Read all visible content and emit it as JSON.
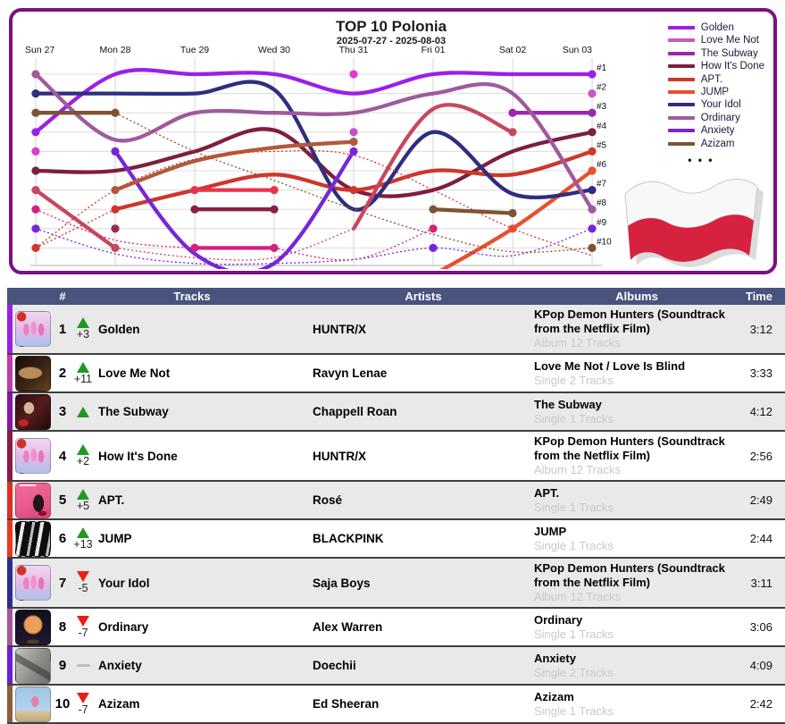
{
  "chart": {
    "title": "TOP 10 Polonia",
    "subtitle": "2025-07-27 - 2025-08-03",
    "border_color": "#7A1083",
    "rank_labels": [
      "#1",
      "#2",
      "#3",
      "#4",
      "#5",
      "#6",
      "#7",
      "#8",
      "#9",
      "#10"
    ],
    "legend_more": "•  •  •"
  },
  "chart_data": {
    "type": "line",
    "subtype": "bump-ranking",
    "title": "TOP 10 Polonia",
    "subtitle": "2025-07-27 - 2025-08-03",
    "x_categories": [
      "Sun 27",
      "Mon 28",
      "Tue 29",
      "Wed 30",
      "Thu 31",
      "Fri 01",
      "Sat 02",
      "Sun 03"
    ],
    "y_axis": {
      "label": "rank",
      "ticks": [
        1,
        2,
        3,
        4,
        5,
        6,
        7,
        8,
        9,
        10
      ],
      "inverted": true
    },
    "grid": true,
    "legend_position": "right",
    "series": [
      {
        "name": "Golden",
        "color": "#9B1FE8",
        "legend": true,
        "segments": [
          {
            "style": "solid",
            "pts": [
              [
                0,
                4
              ],
              [
                1,
                1
              ],
              [
                2,
                1
              ],
              [
                3,
                1
              ],
              [
                4,
                2
              ],
              [
                5,
                1
              ],
              [
                6,
                1
              ],
              [
                7,
                1
              ]
            ]
          }
        ],
        "dots": [
          [
            0,
            4
          ],
          [
            7,
            1
          ]
        ]
      },
      {
        "name": "Love Me Not",
        "color": "#C65BC1",
        "legend": true,
        "segments": [],
        "dots": [
          [
            7,
            2
          ]
        ]
      },
      {
        "name": "The Subway",
        "color": "#9B27AE",
        "legend": true,
        "segments": [
          {
            "style": "solid",
            "pts": [
              [
                6,
                3
              ],
              [
                7,
                3
              ]
            ]
          }
        ],
        "dots": [
          [
            6,
            3
          ],
          [
            7,
            3
          ]
        ]
      },
      {
        "name": "How It's Done",
        "color": "#7E1E3F",
        "legend": true,
        "segments": [
          {
            "style": "solid",
            "pts": [
              [
                0,
                6
              ],
              [
                1,
                6
              ],
              [
                2,
                5
              ],
              [
                3,
                3.9
              ],
              [
                4,
                7
              ],
              [
                5,
                7
              ],
              [
                6,
                5
              ],
              [
                7,
                4
              ]
            ]
          }
        ],
        "dots": [
          [
            0,
            6
          ],
          [
            7,
            4
          ]
        ]
      },
      {
        "name": "APT.",
        "color": "#CE372C",
        "legend": true,
        "segments": [
          {
            "style": "dotted",
            "pts": [
              [
                0,
                10
              ],
              [
                1,
                8
              ]
            ]
          },
          {
            "style": "solid",
            "pts": [
              [
                1,
                8
              ],
              [
                2,
                7
              ],
              [
                3,
                6.2
              ],
              [
                4,
                7
              ],
              [
                5,
                6
              ],
              [
                6,
                6.2
              ],
              [
                7,
                5
              ]
            ]
          }
        ],
        "dots": [
          [
            0,
            10
          ],
          [
            1,
            8
          ],
          [
            4,
            7
          ],
          [
            7,
            5
          ]
        ]
      },
      {
        "name": "JUMP",
        "color": "#E8502E",
        "legend": true,
        "segments": [
          {
            "style": "solid",
            "pts": [
              [
                5,
                11.4
              ],
              [
                6,
                9
              ],
              [
                7,
                6
              ]
            ]
          }
        ],
        "dots": [
          [
            6,
            9
          ],
          [
            7,
            6
          ]
        ]
      },
      {
        "name": "Your Idol",
        "color": "#2E2E7E",
        "legend": true,
        "segments": [
          {
            "style": "solid",
            "pts": [
              [
                0,
                2
              ],
              [
                1,
                2
              ],
              [
                2,
                2
              ],
              [
                3,
                1.8
              ],
              [
                4,
                8
              ],
              [
                5,
                4
              ],
              [
                6,
                7.2
              ],
              [
                7,
                7
              ]
            ]
          }
        ],
        "dots": [
          [
            0,
            2
          ],
          [
            7,
            7
          ]
        ]
      },
      {
        "name": "Ordinary",
        "color": "#A05A9C",
        "legend": true,
        "segments": [
          {
            "style": "solid",
            "pts": [
              [
                0,
                1
              ],
              [
                1,
                4.4
              ],
              [
                2,
                3
              ],
              [
                3,
                3
              ],
              [
                4,
                3
              ],
              [
                5,
                2
              ],
              [
                6,
                2
              ],
              [
                7,
                8
              ]
            ]
          }
        ],
        "dots": [
          [
            0,
            1
          ],
          [
            7,
            8
          ]
        ]
      },
      {
        "name": "Anxiety",
        "color": "#7626D8",
        "legend": true,
        "segments": [
          {
            "style": "dotted",
            "pts": [
              [
                0,
                9
              ],
              [
                1,
                10.3
              ],
              [
                2,
                10.8
              ],
              [
                3,
                10.8
              ],
              [
                4,
                10.6
              ],
              [
                5,
                10
              ],
              [
                6,
                10.4
              ],
              [
                7,
                9
              ]
            ]
          }
        ],
        "dots": [
          [
            0,
            9
          ],
          [
            5,
            10
          ],
          [
            7,
            9
          ]
        ]
      },
      {
        "name": "Azizam",
        "color": "#7E5233",
        "legend": true,
        "segments": [
          {
            "style": "solid",
            "pts": [
              [
                0,
                3
              ],
              [
                1,
                3
              ]
            ]
          },
          {
            "style": "dotted",
            "pts": [
              [
                1,
                3
              ],
              [
                2,
                5
              ],
              [
                3,
                6.5
              ],
              [
                4,
                8
              ],
              [
                5,
                9.3
              ],
              [
                6,
                10.2
              ],
              [
                7,
                10
              ]
            ]
          },
          {
            "style": "solid",
            "pts": [
              [
                5,
                8
              ],
              [
                6,
                8.2
              ]
            ]
          }
        ],
        "dots": [
          [
            0,
            3
          ],
          [
            1,
            3
          ],
          [
            5,
            8
          ],
          [
            6,
            8.2
          ],
          [
            7,
            10
          ]
        ]
      },
      {
        "name": "other-1",
        "color": "#C6485F",
        "legend": false,
        "segments": [
          {
            "style": "solid",
            "pts": [
              [
                0,
                7
              ],
              [
                1,
                10
              ]
            ]
          },
          {
            "style": "dotted",
            "pts": [
              [
                1,
                10
              ],
              [
                2,
                10.5
              ],
              [
                3,
                10.5
              ],
              [
                4,
                9
              ]
            ]
          },
          {
            "style": "solid",
            "pts": [
              [
                4,
                9
              ],
              [
                5,
                2.8
              ],
              [
                6,
                4
              ]
            ]
          }
        ],
        "dots": [
          [
            0,
            7
          ],
          [
            1,
            10
          ],
          [
            6,
            4
          ]
        ]
      },
      {
        "name": "other-2",
        "color": "#7626D8",
        "legend": false,
        "segments": [
          {
            "style": "solid",
            "pts": [
              [
                1,
                5
              ],
              [
                2,
                10.3
              ],
              [
                3,
                10.8
              ],
              [
                4,
                5
              ]
            ]
          }
        ],
        "dots": [
          [
            1,
            5
          ],
          [
            4,
            5
          ]
        ]
      },
      {
        "name": "other-3",
        "color": "#D61F7E",
        "legend": false,
        "segments": [
          {
            "style": "solid",
            "pts": [
              [
                2,
                10
              ],
              [
                3,
                10
              ]
            ]
          },
          {
            "style": "dotted",
            "pts": [
              [
                0,
                8
              ],
              [
                1,
                9.6
              ],
              [
                2,
                10
              ]
            ]
          },
          {
            "style": "dotted",
            "pts": [
              [
                3,
                10
              ],
              [
                4,
                10.6
              ],
              [
                5,
                9
              ]
            ]
          }
        ],
        "dots": [
          [
            0,
            8
          ],
          [
            2,
            10
          ],
          [
            3,
            10
          ],
          [
            5,
            9
          ]
        ]
      },
      {
        "name": "other-4",
        "color": "#E03BC8",
        "legend": false,
        "segments": [],
        "dots": [
          [
            0,
            5
          ],
          [
            4,
            1
          ]
        ]
      },
      {
        "name": "other-5",
        "color": "#C94FC9",
        "legend": false,
        "segments": [],
        "dots": [
          [
            4,
            4
          ]
        ]
      },
      {
        "name": "other-6",
        "color": "#B05A3C",
        "legend": false,
        "segments": [
          {
            "style": "solid",
            "pts": [
              [
                1,
                7
              ],
              [
                2,
                5.5
              ],
              [
                3,
                4.8
              ],
              [
                4,
                4.5
              ]
            ]
          }
        ],
        "dots": [
          [
            1,
            7
          ],
          [
            4,
            4.5
          ]
        ]
      },
      {
        "name": "other-7",
        "color": "#8B2040",
        "legend": false,
        "segments": [
          {
            "style": "solid",
            "pts": [
              [
                2,
                8
              ],
              [
                3,
                8
              ]
            ]
          }
        ],
        "dots": [
          [
            2,
            8
          ],
          [
            3,
            8
          ]
        ]
      },
      {
        "name": "other-8",
        "color": "#E8334A",
        "legend": false,
        "segments": [
          {
            "style": "solid",
            "pts": [
              [
                2,
                7
              ],
              [
                3,
                7
              ]
            ]
          }
        ],
        "dots": [
          [
            2,
            7
          ],
          [
            3,
            7
          ]
        ]
      },
      {
        "name": "other-9",
        "color": "#9B2B52",
        "legend": false,
        "segments": [],
        "dots": [
          [
            1,
            9
          ]
        ]
      },
      {
        "name": "other-10",
        "color": "#D2372C",
        "legend": false,
        "segments": [
          {
            "style": "dotted",
            "pts": [
              [
                0,
                10
              ],
              [
                1,
                7
              ],
              [
                2,
                5.4
              ],
              [
                3,
                5
              ],
              [
                4,
                5.2
              ],
              [
                5,
                7
              ],
              [
                6,
                9
              ],
              [
                7,
                10.4
              ]
            ]
          }
        ],
        "dots": []
      }
    ]
  },
  "flag": {
    "name": "poland-flag",
    "white": "#F8F8F8",
    "red": "#D6213F"
  },
  "table": {
    "header_bg": "#48547E",
    "headers": {
      "rank": "#",
      "tracks": "Tracks",
      "artists": "Artists",
      "albums": "Albums",
      "time": "Time"
    },
    "rows": [
      {
        "rank": "1",
        "change_dir": "up",
        "delta": "+3",
        "track": "Golden",
        "artist": "HUNTR/X",
        "album": "KPop Demon Hunters (Soundtrack from the Netflix Film)",
        "album_info": "Album 12 Tracks",
        "time": "3:12",
        "color": "#9B1FE8",
        "art": "kpop"
      },
      {
        "rank": "2",
        "change_dir": "up",
        "delta": "+11",
        "track": "Love Me Not",
        "artist": "Ravyn Lenae",
        "album": "Love Me Not / Love Is Blind",
        "album_info": "Single 2 Tracks",
        "time": "3:33",
        "color": "#C23BAE",
        "art": "lovemenot"
      },
      {
        "rank": "3",
        "change_dir": "up",
        "delta": "",
        "track": "The Subway",
        "artist": "Chappell Roan",
        "album": "The Subway",
        "album_info": "Single 1 Tracks",
        "time": "4:12",
        "color": "#8B14A8",
        "art": "subway"
      },
      {
        "rank": "4",
        "change_dir": "up",
        "delta": "+2",
        "track": "How It's Done",
        "artist": "HUNTR/X",
        "album": "KPop Demon Hunters (Soundtrack from the Netflix Film)",
        "album_info": "Album 12 Tracks",
        "time": "2:56",
        "color": "#8B1A4A",
        "art": "kpop"
      },
      {
        "rank": "5",
        "change_dir": "up",
        "delta": "+5",
        "track": "APT.",
        "artist": "Rosé",
        "album": "APT.",
        "album_info": "Single 1 Tracks",
        "time": "2:49",
        "color": "#E02D22",
        "art": "apt"
      },
      {
        "rank": "6",
        "change_dir": "up",
        "delta": "+13",
        "track": "JUMP",
        "artist": "BLACKPINK",
        "album": "JUMP",
        "album_info": "Single 1 Tracks",
        "time": "2:44",
        "color": "#F03818",
        "art": "jump"
      },
      {
        "rank": "7",
        "change_dir": "down",
        "delta": "-5",
        "track": "Your Idol",
        "artist": "Saja Boys",
        "album": "KPop Demon Hunters (Soundtrack from the Netflix Film)",
        "album_info": "Album 12 Tracks",
        "time": "3:11",
        "color": "#2D2D8F",
        "art": "kpop"
      },
      {
        "rank": "8",
        "change_dir": "down",
        "delta": "-7",
        "track": "Ordinary",
        "artist": "Alex Warren",
        "album": "Ordinary",
        "album_info": "Single 1 Tracks",
        "time": "3:06",
        "color": "#A855A0",
        "art": "ordinary"
      },
      {
        "rank": "9",
        "change_dir": "same",
        "delta": "",
        "track": "Anxiety",
        "artist": "Doechii",
        "album": "Anxiety",
        "album_info": "Single 2 Tracks",
        "time": "4:09",
        "color": "#6A1FD8",
        "art": "anxiety"
      },
      {
        "rank": "10",
        "change_dir": "down",
        "delta": "-7",
        "track": "Azizam",
        "artist": "Ed Sheeran",
        "album": "Azizam",
        "album_info": "Single 1 Tracks",
        "time": "2:42",
        "color": "#8B5E3C",
        "art": "azizam"
      }
    ]
  }
}
